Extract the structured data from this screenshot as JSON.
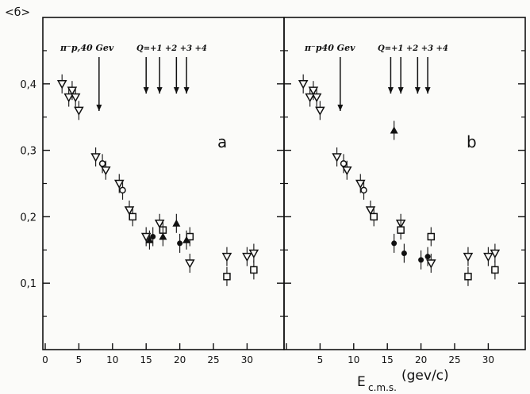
{
  "chart_data": {
    "type": "scatter",
    "y_axis_label": "<б>",
    "x_axis_label_main": "E",
    "x_axis_label_sub": "c.m.s.",
    "x_axis_label_units": "(gev/c)",
    "x_ticks": [
      0,
      5,
      10,
      15,
      20,
      25,
      30
    ],
    "y_ticks": [
      "0,1",
      "0,2",
      "0,3",
      "0,4"
    ],
    "y_tick_values": [
      0.1,
      0.2,
      0.3,
      0.4
    ],
    "xlim": [
      0,
      33
    ],
    "ylim": [
      0,
      0.5
    ],
    "grid": false,
    "panels": [
      {
        "label": "a",
        "annotation_pion": "π⁻p,40 Gev",
        "annotation_q": "Q=+1 +2 +3 +4",
        "arrows_x": [
          8,
          15,
          17,
          19.5,
          21
        ],
        "series": [
          {
            "marker": "open-triangle-down",
            "points": [
              [
                2.5,
                0.4
              ],
              [
                3.5,
                0.38
              ],
              [
                4,
                0.39
              ],
              [
                4.5,
                0.38
              ],
              [
                5,
                0.36
              ],
              [
                7.5,
                0.29
              ],
              [
                9,
                0.27
              ],
              [
                11,
                0.25
              ],
              [
                12.5,
                0.21
              ],
              [
                15,
                0.17
              ],
              [
                17,
                0.19
              ],
              [
                21.5,
                0.13
              ],
              [
                27,
                0.14
              ],
              [
                30,
                0.14
              ],
              [
                31,
                0.145
              ]
            ]
          },
          {
            "marker": "open-circle",
            "points": [
              [
                8.5,
                0.28
              ],
              [
                11.5,
                0.24
              ]
            ]
          },
          {
            "marker": "open-square",
            "points": [
              [
                13,
                0.2
              ],
              [
                17.5,
                0.18
              ],
              [
                21.5,
                0.17
              ],
              [
                27,
                0.11
              ],
              [
                31,
                0.12
              ]
            ]
          },
          {
            "marker": "filled-triangle-up",
            "points": [
              [
                15.5,
                0.165
              ],
              [
                17.5,
                0.17
              ],
              [
                19.5,
                0.19
              ],
              [
                21,
                0.165
              ]
            ]
          },
          {
            "marker": "filled-circle",
            "points": [
              [
                16,
                0.17
              ],
              [
                20,
                0.16
              ]
            ]
          }
        ]
      },
      {
        "label": "b",
        "annotation_pion": "π⁻p40 Gev",
        "annotation_q": "Q=+1 +2 +3 +4",
        "arrows_x": [
          8,
          15.5,
          17,
          19.5,
          21
        ],
        "series": [
          {
            "marker": "open-triangle-down",
            "points": [
              [
                2.5,
                0.4
              ],
              [
                3.5,
                0.38
              ],
              [
                4,
                0.39
              ],
              [
                4.5,
                0.38
              ],
              [
                5,
                0.36
              ],
              [
                7.5,
                0.29
              ],
              [
                9,
                0.27
              ],
              [
                11,
                0.25
              ],
              [
                12.5,
                0.21
              ],
              [
                17,
                0.19
              ],
              [
                21.5,
                0.13
              ],
              [
                27,
                0.14
              ],
              [
                30,
                0.14
              ],
              [
                31,
                0.145
              ]
            ]
          },
          {
            "marker": "open-circle",
            "points": [
              [
                8.5,
                0.28
              ],
              [
                11.5,
                0.24
              ]
            ]
          },
          {
            "marker": "open-square",
            "points": [
              [
                13,
                0.2
              ],
              [
                17,
                0.18
              ],
              [
                21.5,
                0.17
              ],
              [
                27,
                0.11
              ],
              [
                31,
                0.12
              ]
            ]
          },
          {
            "marker": "filled-triangle-up",
            "points": [
              [
                16,
                0.33
              ]
            ]
          },
          {
            "marker": "filled-circle",
            "points": [
              [
                16,
                0.16
              ],
              [
                17.5,
                0.145
              ],
              [
                20,
                0.135
              ],
              [
                21,
                0.14
              ]
            ]
          }
        ]
      }
    ]
  }
}
